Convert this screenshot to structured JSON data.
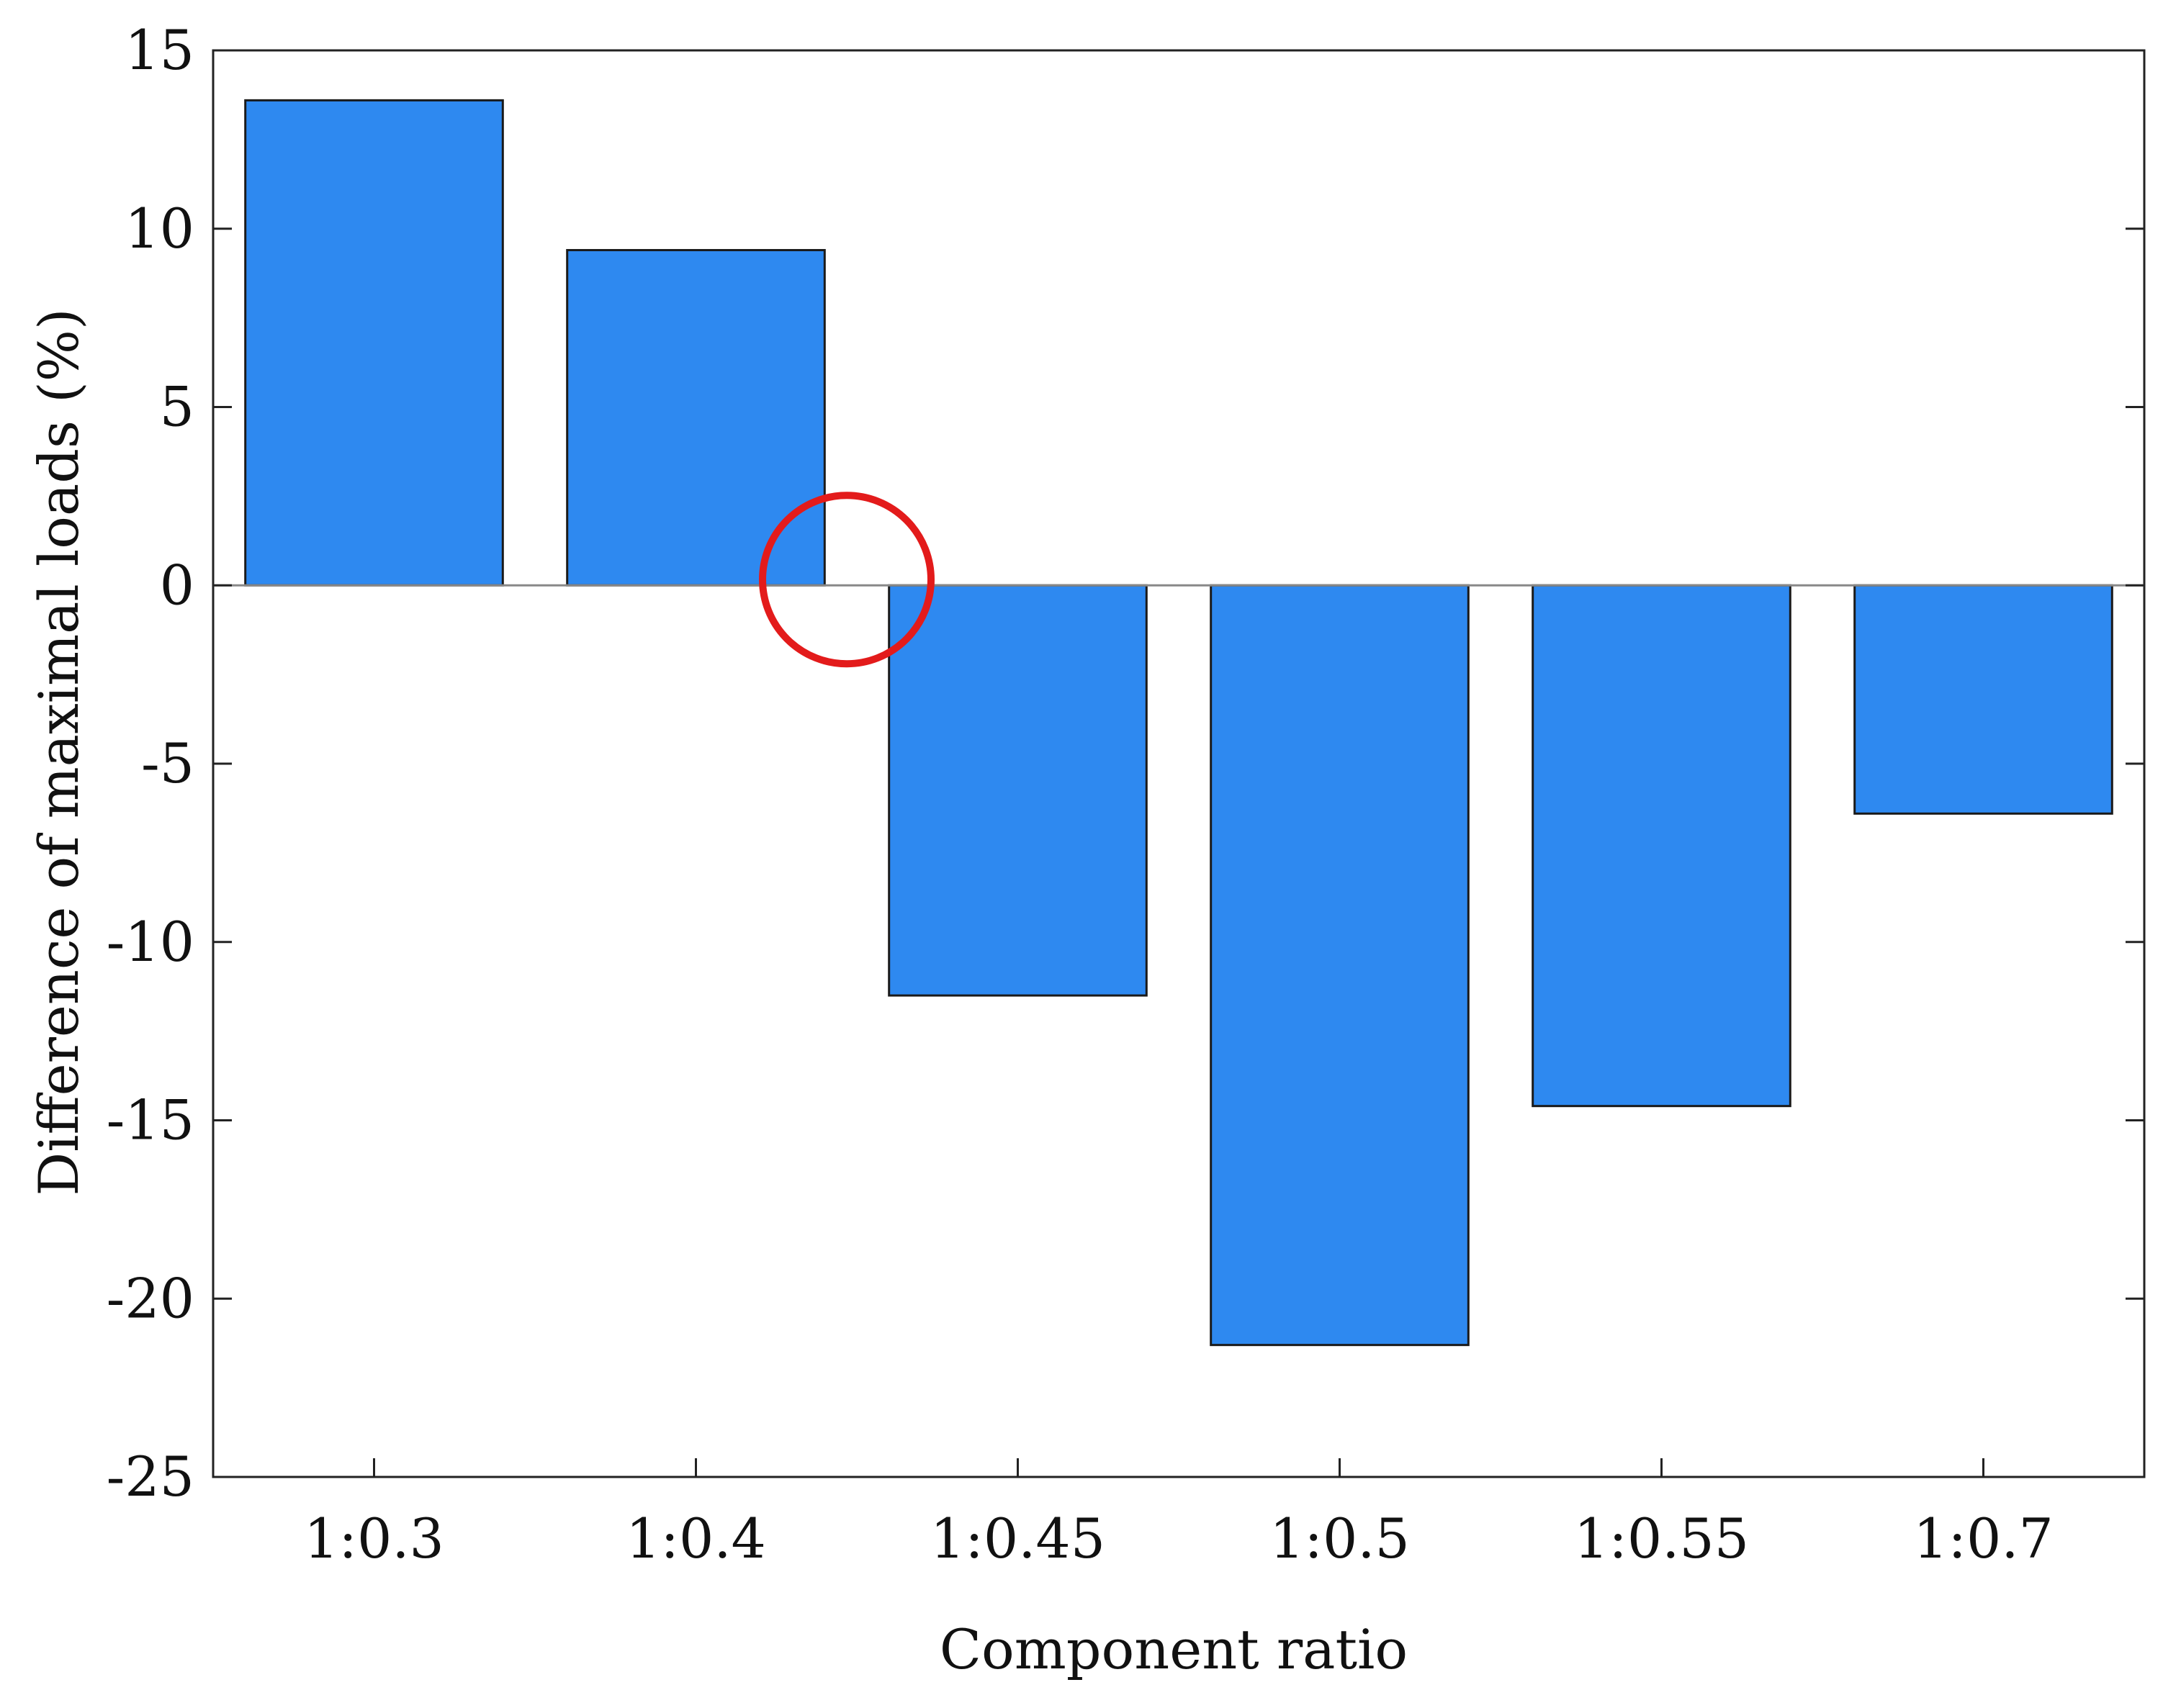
{
  "chart_data": {
    "type": "bar",
    "title": "",
    "xlabel": "Component ratio",
    "ylabel": "Difference of maximal loads (%)",
    "categories": [
      "1:0.3",
      "1:0.4",
      "1:0.45",
      "1:0.5",
      "1:0.55",
      "1:0.7"
    ],
    "values": [
      13.6,
      9.4,
      -11.5,
      -21.3,
      -14.6,
      -6.4
    ],
    "ylim": [
      -25,
      15
    ],
    "yticks": [
      15,
      10,
      5,
      0,
      -5,
      -10,
      -15,
      -20,
      -25
    ],
    "grid": false,
    "legend": "none",
    "bar_color": "#2E89F0",
    "bar_edge_color": "#1a1a1a",
    "annotation": {
      "shape": "circle",
      "color": "#E31B1B",
      "marks": "boundary between 1:0.4 and 1:0.45 at 0"
    }
  }
}
